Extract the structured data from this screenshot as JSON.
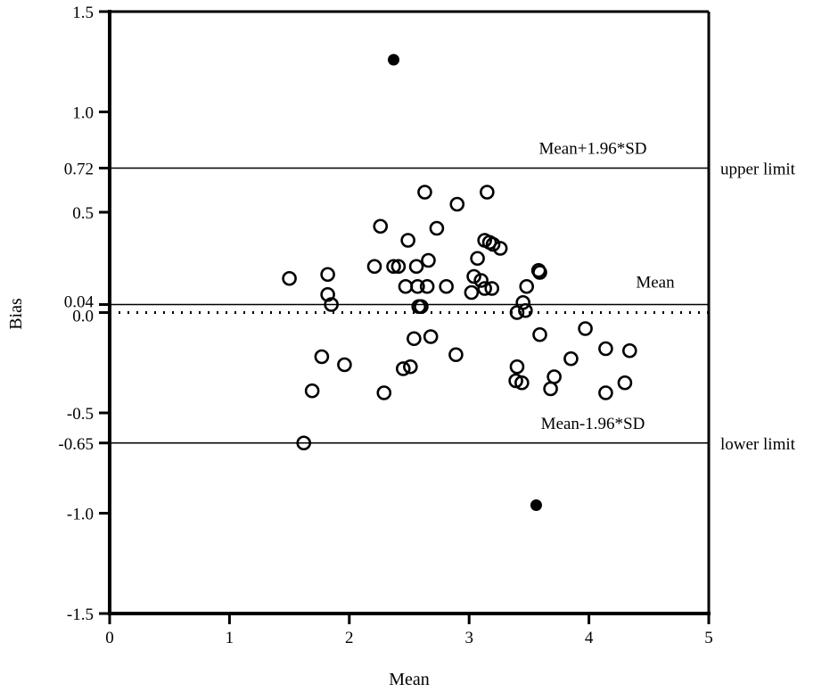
{
  "chart_data": {
    "type": "scatter",
    "title": "",
    "xlabel": "Mean",
    "ylabel": "Bias",
    "xlim": [
      0,
      5
    ],
    "ylim": [
      -1.5,
      1.5
    ],
    "x_ticks": [
      0,
      1,
      2,
      3,
      4,
      5
    ],
    "y_ticks": [
      {
        "value": 1.5,
        "label": "1.5"
      },
      {
        "value": 1.0,
        "label": "1.0"
      },
      {
        "value": 0.72,
        "label": "0.72"
      },
      {
        "value": 0.5,
        "label": "0.5"
      },
      {
        "value": 0.04,
        "label": "0.04"
      },
      {
        "value": 0.0,
        "label": "0.0"
      },
      {
        "value": -0.5,
        "label": "-0.5"
      },
      {
        "value": -0.65,
        "label": "-0.65"
      },
      {
        "value": -1.0,
        "label": "-1.0"
      },
      {
        "value": -1.5,
        "label": "-1.5"
      }
    ],
    "grid": false,
    "reference_lines": [
      {
        "value": 0.72,
        "label": "Mean+1.96*SD",
        "side_label": "upper limit",
        "style": "solid"
      },
      {
        "value": 0.04,
        "label": "Mean",
        "side_label": "",
        "style": "solid"
      },
      {
        "value": -0.65,
        "label": "Mean-1.96*SD",
        "side_label": "lower limit",
        "style": "solid"
      },
      {
        "value": 0.0,
        "label": "",
        "side_label": "",
        "style": "dotted"
      }
    ],
    "series": [
      {
        "marker": "open-circle",
        "points": [
          [
            1.5,
            0.17
          ],
          [
            1.82,
            0.19
          ],
          [
            1.82,
            0.09
          ],
          [
            1.85,
            0.04
          ],
          [
            1.69,
            -0.39
          ],
          [
            1.77,
            -0.22
          ],
          [
            1.96,
            -0.26
          ],
          [
            1.62,
            -0.65
          ],
          [
            2.21,
            0.23
          ],
          [
            2.37,
            0.23
          ],
          [
            2.41,
            0.23
          ],
          [
            2.26,
            0.43
          ],
          [
            2.49,
            0.36
          ],
          [
            2.56,
            0.23
          ],
          [
            2.66,
            0.26
          ],
          [
            2.47,
            0.13
          ],
          [
            2.57,
            0.13
          ],
          [
            2.58,
            0.03
          ],
          [
            2.6,
            0.03
          ],
          [
            2.54,
            -0.13
          ],
          [
            2.45,
            -0.28
          ],
          [
            2.51,
            -0.27
          ],
          [
            2.29,
            -0.4
          ],
          [
            2.65,
            0.13
          ],
          [
            2.68,
            -0.12
          ],
          [
            2.63,
            0.6
          ],
          [
            2.73,
            0.42
          ],
          [
            2.9,
            0.54
          ],
          [
            2.81,
            0.13
          ],
          [
            3.02,
            0.1
          ],
          [
            3.07,
            0.27
          ],
          [
            3.04,
            0.18
          ],
          [
            3.1,
            0.16
          ],
          [
            3.13,
            0.12
          ],
          [
            3.15,
            0.6
          ],
          [
            3.13,
            0.36
          ],
          [
            3.17,
            0.35
          ],
          [
            3.2,
            0.34
          ],
          [
            3.26,
            0.32
          ],
          [
            3.19,
            0.12
          ],
          [
            2.89,
            -0.21
          ],
          [
            3.39,
            -0.34
          ],
          [
            3.4,
            -0.27
          ],
          [
            3.44,
            -0.35
          ],
          [
            3.4,
            0.0
          ],
          [
            3.45,
            0.05
          ],
          [
            3.47,
            0.01
          ],
          [
            3.48,
            0.13
          ],
          [
            3.59,
            0.2
          ],
          [
            3.58,
            0.21
          ],
          [
            3.59,
            -0.11
          ],
          [
            3.68,
            -0.38
          ],
          [
            3.71,
            -0.32
          ],
          [
            3.85,
            -0.23
          ],
          [
            3.97,
            -0.08
          ],
          [
            4.14,
            -0.18
          ],
          [
            4.14,
            -0.4
          ],
          [
            4.3,
            -0.35
          ],
          [
            4.34,
            -0.19
          ]
        ]
      },
      {
        "marker": "filled-circle",
        "points": [
          [
            2.37,
            1.26
          ],
          [
            3.56,
            -0.96
          ]
        ]
      }
    ]
  }
}
